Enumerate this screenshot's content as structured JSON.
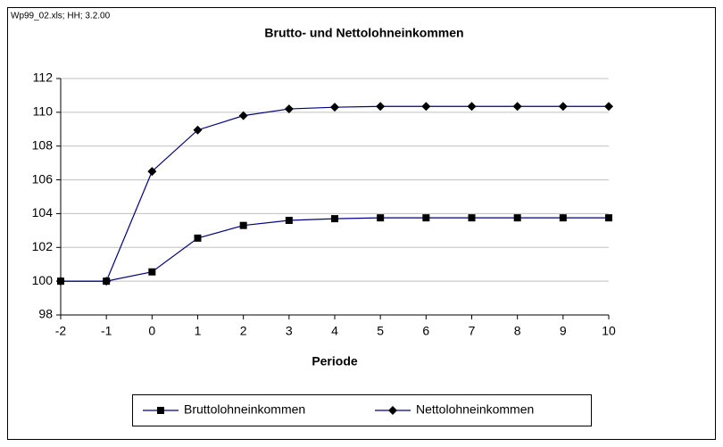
{
  "chart_data": {
    "type": "line",
    "annotation": "Wp99_02.xls; HH; 3.2.00",
    "title": "Brutto- und Nettolohneinkommen",
    "x_label": "Periode",
    "x": [
      -2,
      -1,
      0,
      1,
      2,
      3,
      4,
      5,
      6,
      7,
      8,
      9,
      10
    ],
    "series": [
      {
        "name": "Bruttolohneinkommen",
        "color": "#000080",
        "marker": "square",
        "values": [
          100,
          100,
          100.55,
          102.55,
          103.3,
          103.6,
          103.7,
          103.75,
          103.75,
          103.75,
          103.75,
          103.75,
          103.75
        ]
      },
      {
        "name": "Nettolohneinkommen",
        "color": "#000080",
        "marker": "diamond",
        "values": [
          100,
          100,
          106.5,
          108.95,
          109.8,
          110.2,
          110.3,
          110.35,
          110.35,
          110.35,
          110.35,
          110.35,
          110.35
        ]
      }
    ],
    "xlim": [
      -2,
      10
    ],
    "xticks": [
      -2,
      -1,
      0,
      1,
      2,
      3,
      4,
      5,
      6,
      7,
      8,
      9,
      10
    ],
    "ylim": [
      98,
      112
    ],
    "yticks": [
      98,
      100,
      102,
      104,
      106,
      108,
      110,
      112
    ],
    "grid": true,
    "legend": "bottom"
  }
}
